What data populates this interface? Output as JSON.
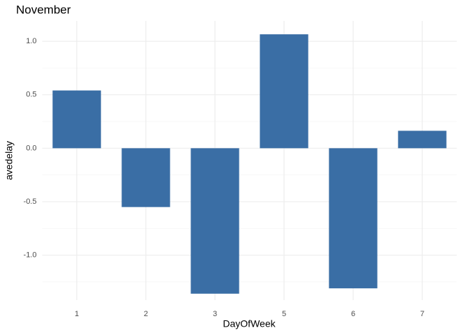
{
  "chart_data": {
    "type": "bar",
    "title": "November",
    "x_label": "DayOfWeek",
    "y_label": "avedelay",
    "categories": [
      "1",
      "2",
      "3",
      "5",
      "6",
      "7"
    ],
    "values": [
      0.54,
      -0.55,
      -1.36,
      1.065,
      -1.31,
      0.163
    ],
    "color": "#3a6ea5",
    "ylim": [
      -1.42,
      1.19
    ],
    "yticks": [
      {
        "value": -1.0,
        "label": "-1.0"
      },
      {
        "value": -0.5,
        "label": "-0.5"
      },
      {
        "value": 0,
        "label": "0.0"
      },
      {
        "value": 0.5,
        "label": "0.5"
      },
      {
        "value": 1.0,
        "label": "1.0"
      }
    ],
    "grid": true
  }
}
